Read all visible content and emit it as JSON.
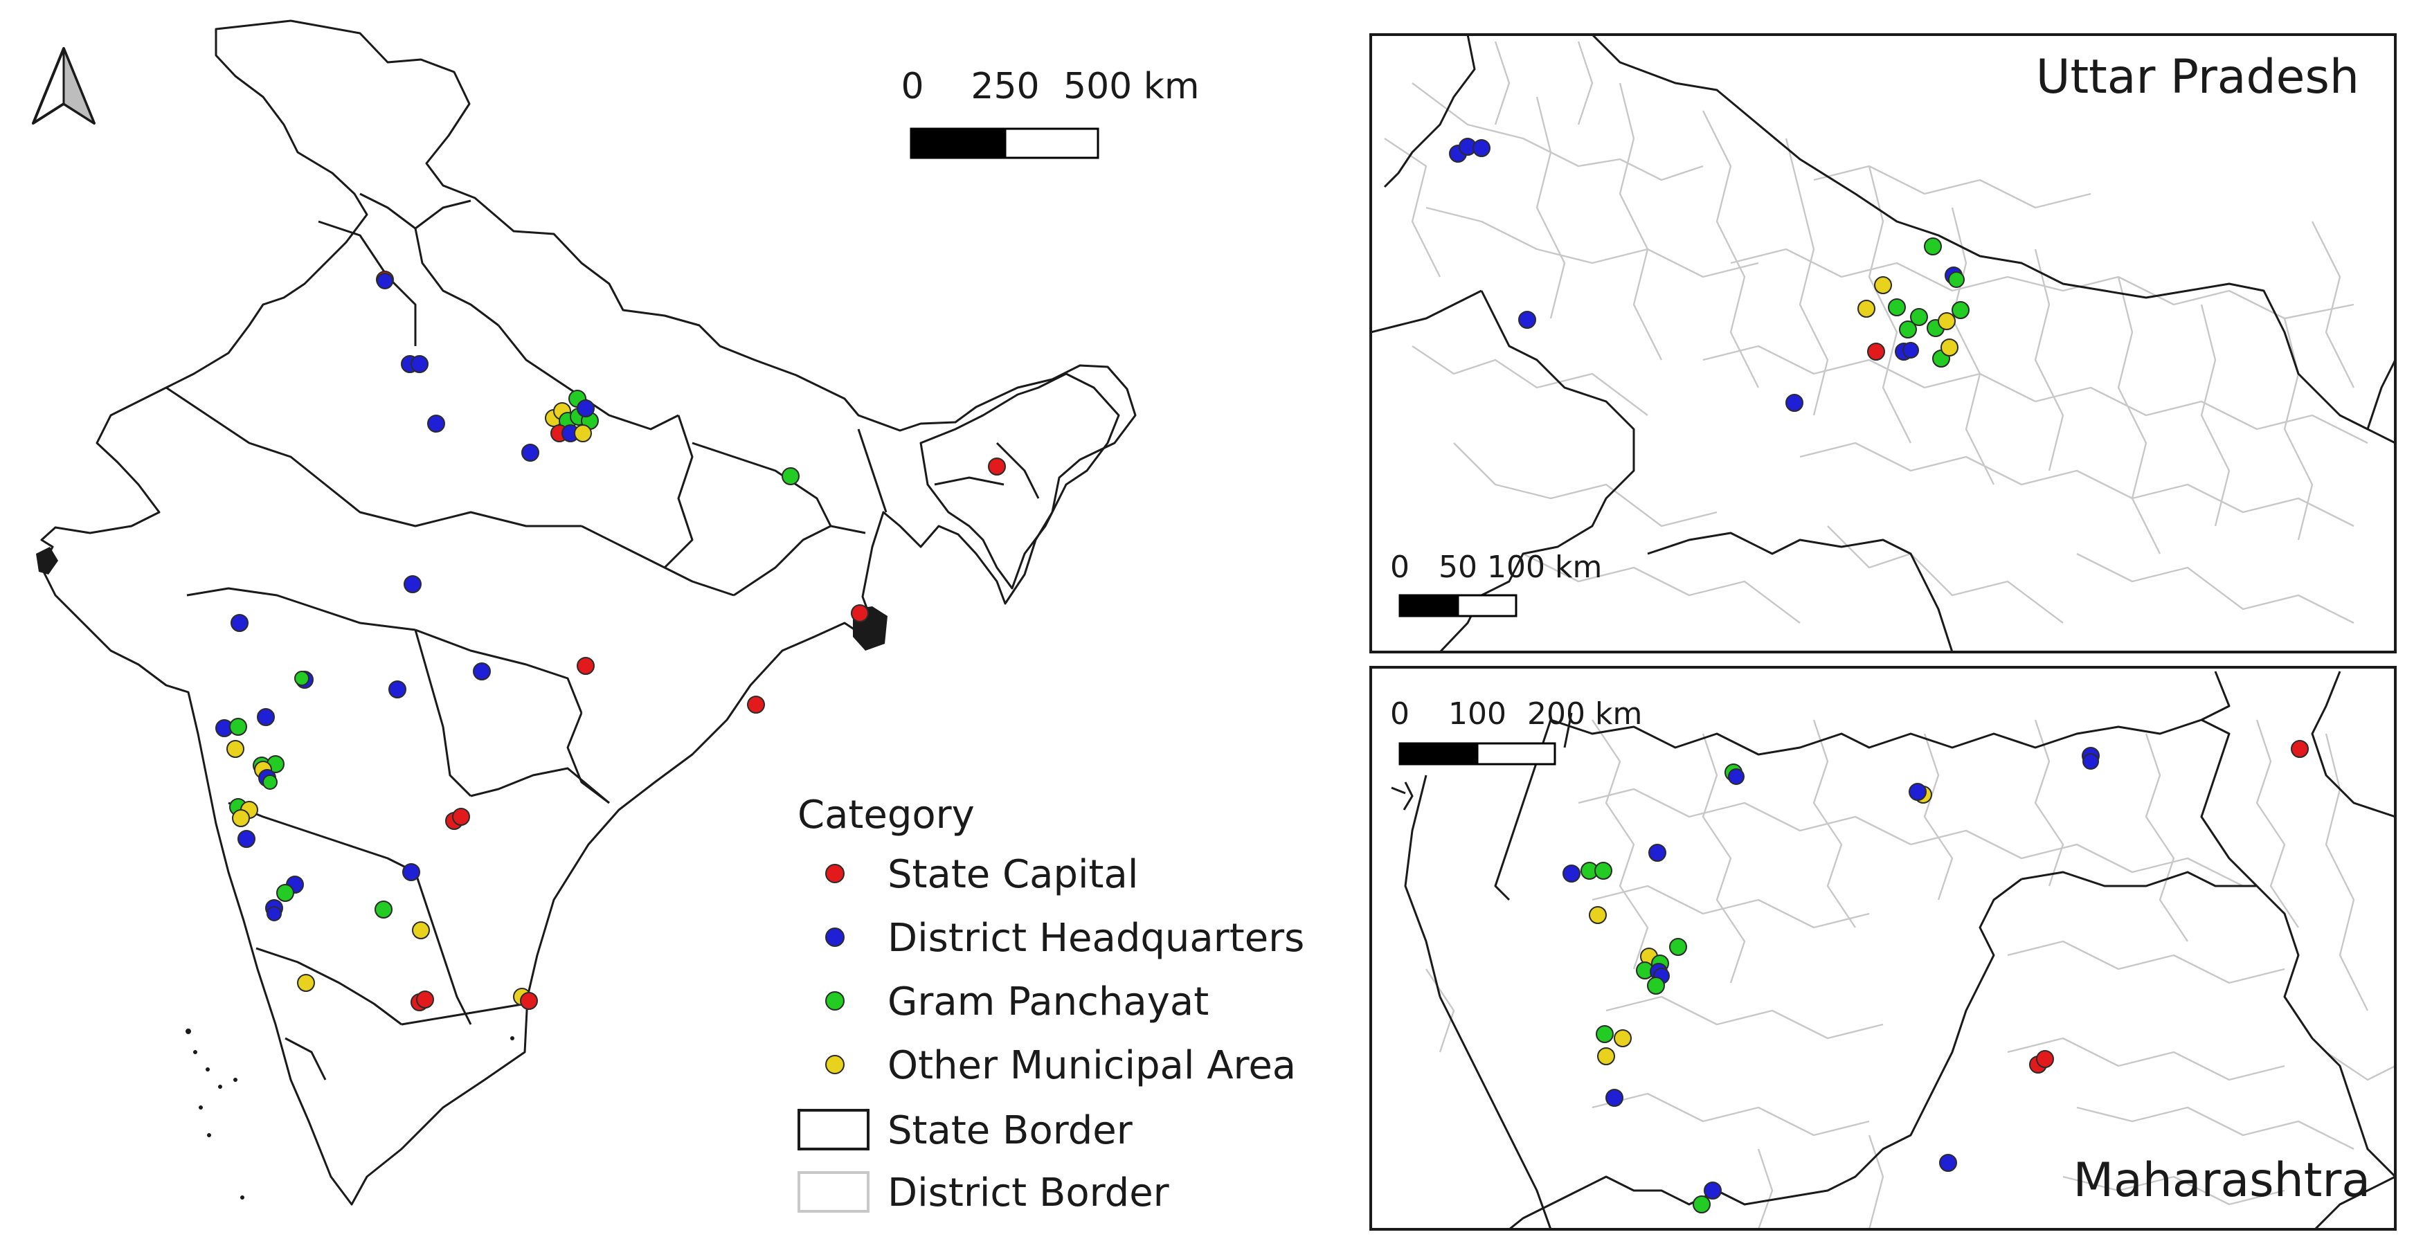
{
  "colors": {
    "state_capital": "#e31a1c",
    "district_headquarters": "#1f1fd6",
    "gram_panchayat": "#22cc22",
    "other_municipal_area": "#e8d21d",
    "state_border": "#1a1a1a",
    "district_border": "#c8c8c8"
  },
  "india_map": {
    "north_arrow": "north-arrow-icon",
    "scalebar": {
      "ticks": [
        "0",
        "250",
        "500 km"
      ]
    }
  },
  "inset_up": {
    "title": "Uttar Pradesh",
    "scalebar": {
      "ticks": [
        "0",
        "50",
        "100 km"
      ]
    }
  },
  "inset_mh": {
    "title": "Maharashtra",
    "scalebar": {
      "ticks": [
        "0",
        "100",
        "200 km"
      ]
    }
  },
  "legend": {
    "title": "Category",
    "items": [
      {
        "label": "State Capital",
        "symbol": "dot",
        "color": "#e31a1c"
      },
      {
        "label": "District Headquarters",
        "symbol": "dot",
        "color": "#1f1fd6"
      },
      {
        "label": "Gram Panchayat",
        "symbol": "dot",
        "color": "#22cc22"
      },
      {
        "label": "Other Municipal Area",
        "symbol": "dot",
        "color": "#e8d21d"
      },
      {
        "label": "State Border",
        "symbol": "box",
        "color": "#1a1a1a"
      },
      {
        "label": "District Border",
        "symbol": "box",
        "color": "#c8c8c8"
      }
    ]
  }
}
